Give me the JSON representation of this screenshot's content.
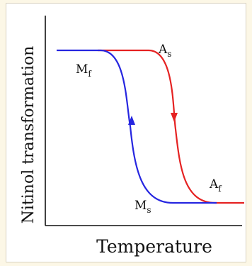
{
  "diagram": {
    "xlabel": "Temperature",
    "ylabel": "Nitinol transformation",
    "points": {
      "mf": {
        "main": "M",
        "sub": "f"
      },
      "ms": {
        "main": "M",
        "sub": "s"
      },
      "as": {
        "main": "A",
        "sub": "s"
      },
      "af": {
        "main": "A",
        "sub": "f"
      }
    },
    "colors": {
      "cooling_curve": "#2626e0",
      "heating_curve": "#e52222",
      "axes": "#111111",
      "background": "#fcf7e6"
    }
  }
}
